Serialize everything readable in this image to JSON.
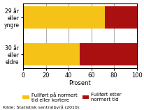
{
  "chart_data": {
    "type": "bar",
    "orientation": "horizontal",
    "stacked": true,
    "categories": [
      "30 år\neller\neldre",
      "29 år\neller\nyngre"
    ],
    "series": [
      {
        "name": "Fullført på normert\ntid eller kortere",
        "color": "#F5C218",
        "values": [
          50,
          72
        ]
      },
      {
        "name": "Fullført etter\nnormert tid",
        "color": "#AA1010",
        "values": [
          50,
          28
        ]
      }
    ],
    "xlabel": "Prosent",
    "xlim": [
      0,
      100
    ],
    "xticks": [
      0,
      20,
      40,
      60,
      80,
      100
    ],
    "grid": true,
    "legend": "bottom",
    "annotations": [
      "Kilde: Statistisk sentralbyrå (2010)."
    ]
  }
}
